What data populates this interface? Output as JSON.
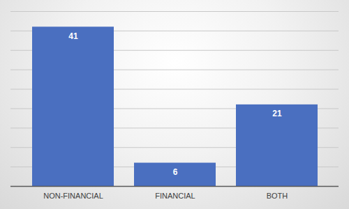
{
  "chart_data": {
    "type": "bar",
    "categories": [
      "NON-FINANCIAL",
      "FINANCIAL",
      "BOTH"
    ],
    "values": [
      41,
      6,
      21
    ],
    "color": "#4a6fc0",
    "ylim": [
      0,
      45
    ],
    "yticks": [
      0,
      5,
      10,
      15,
      20,
      25,
      30,
      35,
      40,
      45
    ],
    "grid": true,
    "data_labels": true,
    "tick_labels": "x"
  }
}
